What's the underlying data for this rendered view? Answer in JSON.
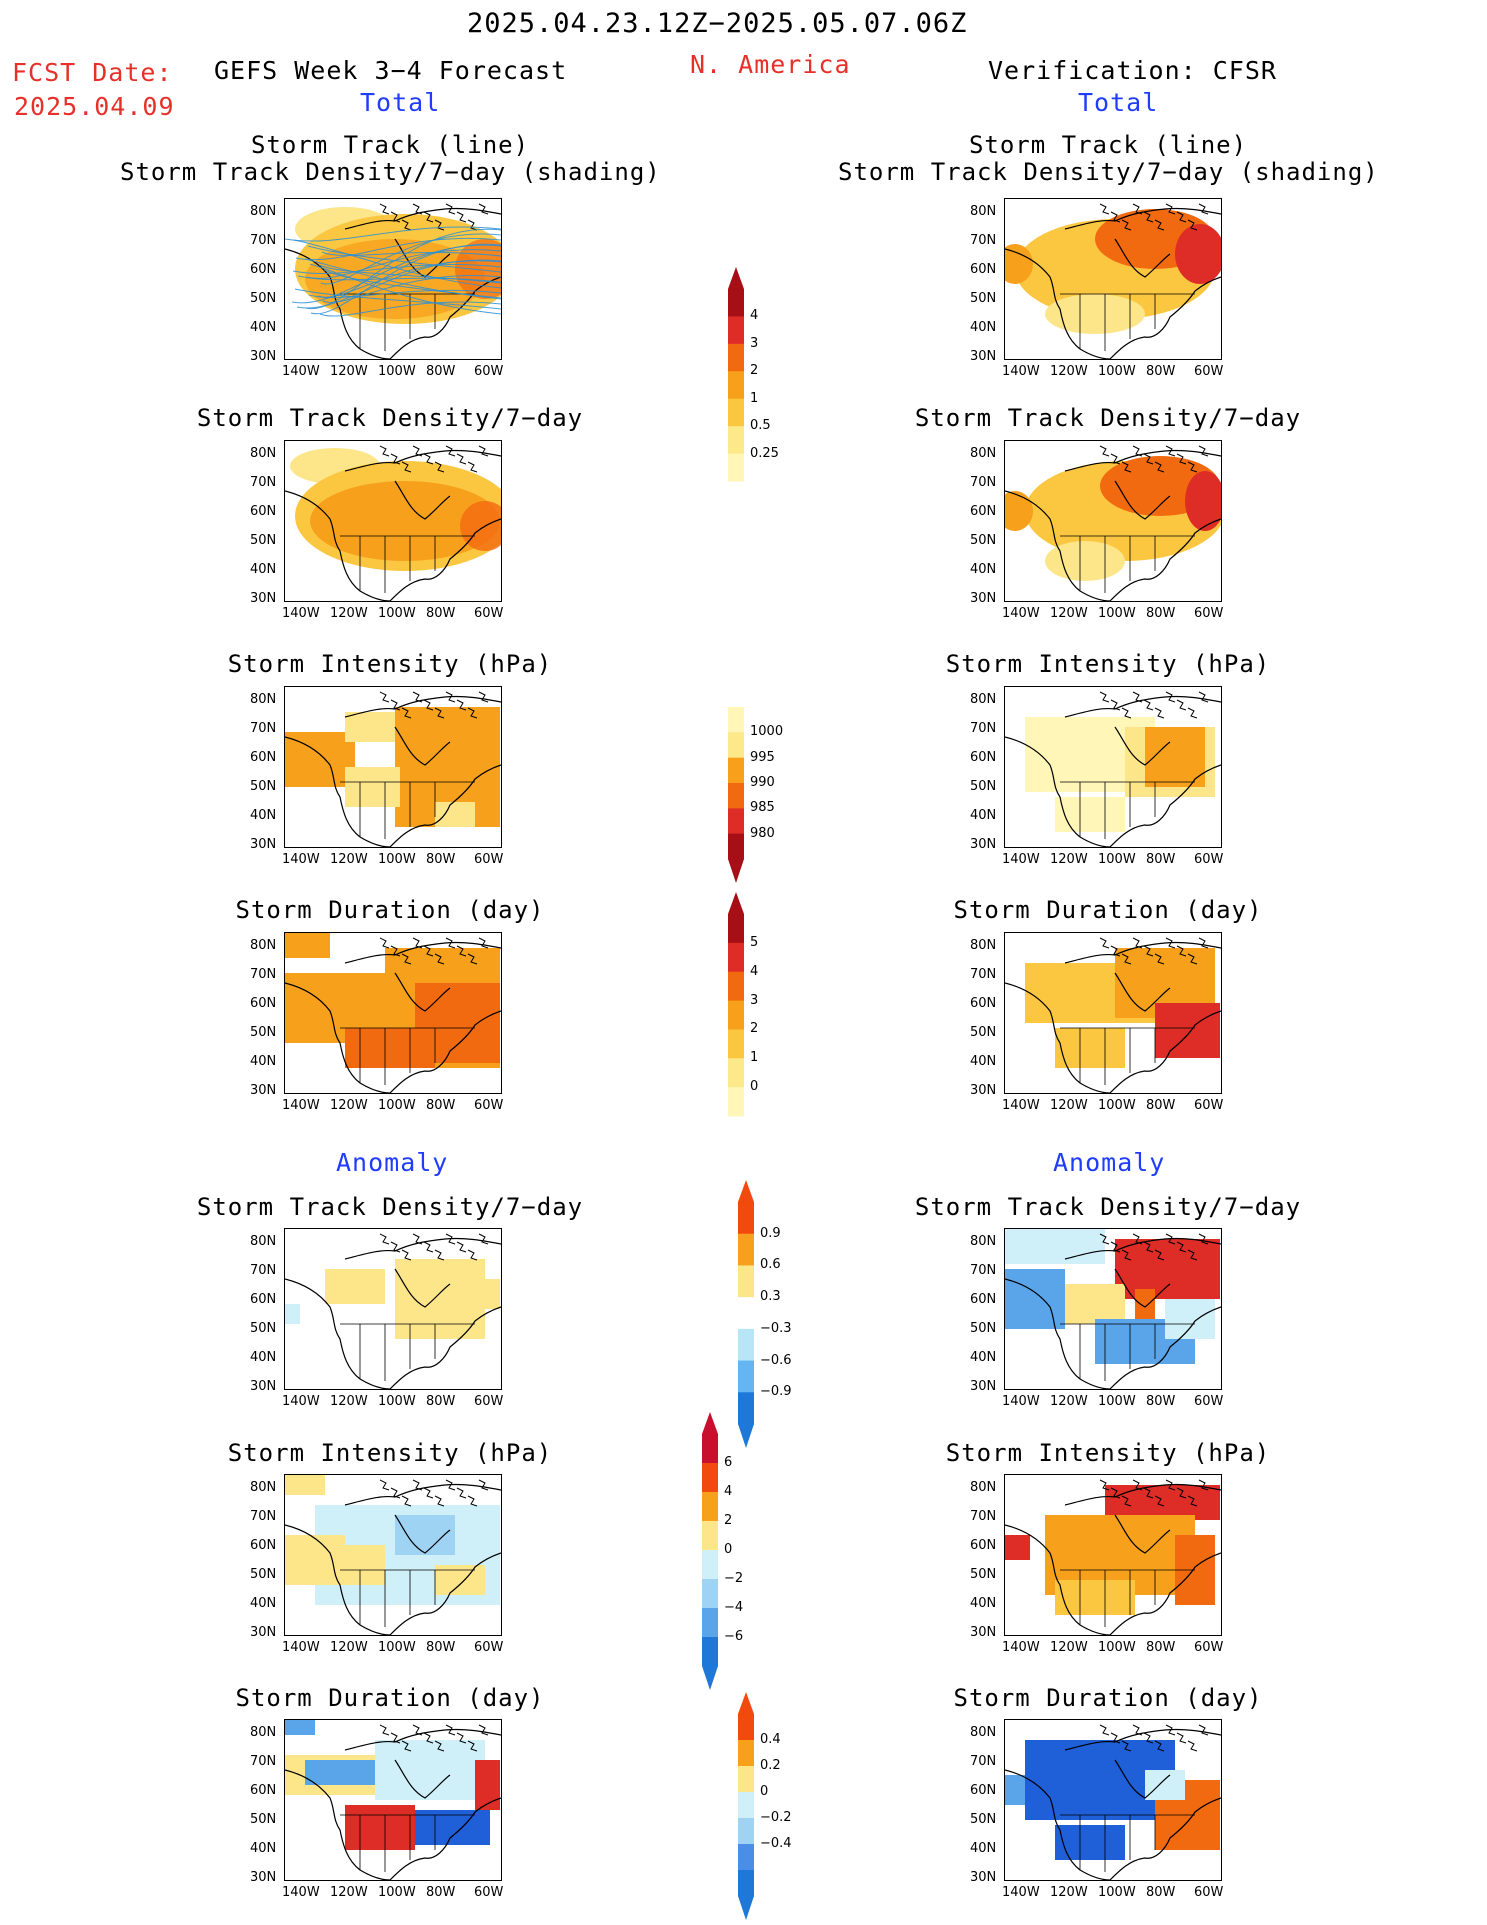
{
  "header": {
    "period": "2025.04.23.12Z−2025.05.07.06Z",
    "fcst_date_label": "FCST Date:",
    "fcst_date": "2025.04.09",
    "product": "GEFS Week 3−4 Forecast",
    "region": "N. America",
    "verification": "Verification: CFSR",
    "total_left": "Total",
    "total_right": "Total",
    "anomaly_left": "Anomaly",
    "anomaly_right": "Anomaly"
  },
  "axes": {
    "lat_ticks": [
      "80N",
      "70N",
      "60N",
      "50N",
      "40N",
      "30N"
    ],
    "lon_ticks": [
      "140W",
      "120W",
      "100W",
      "80W",
      "60W"
    ]
  },
  "panels": {
    "t1": {
      "line1": "Storm Track (line)",
      "line2": "Storm Track Density/7−day (shading)"
    },
    "t2": "Storm Track Density/7−day",
    "t3": "Storm Intensity (hPa)",
    "t4": "Storm Duration (day)",
    "a1": "Storm Track Density/7−day",
    "a2": "Storm Intensity (hPa)",
    "a3": "Storm Duration (day)"
  },
  "colorbars": {
    "density": {
      "labels": [
        "4",
        "3",
        "2",
        "1",
        "0.5",
        "0.25"
      ],
      "colors": [
        "#a50f15",
        "#de2d26",
        "#f26a0f",
        "#f7a01b",
        "#fcc740",
        "#fde88a",
        "#fff6b8"
      ]
    },
    "intensity": {
      "labels": [
        "1000",
        "995",
        "990",
        "985",
        "980"
      ],
      "colors": [
        "#fff6b8",
        "#fde88a",
        "#f7a01b",
        "#f26a0f",
        "#de2d26",
        "#a50f15"
      ]
    },
    "duration": {
      "labels": [
        "5",
        "4",
        "3",
        "2",
        "1",
        "0"
      ],
      "colors": [
        "#a50f15",
        "#de2d26",
        "#f26a0f",
        "#f7a01b",
        "#fcc740",
        "#fde88a",
        "#fff6b8"
      ]
    },
    "density_anom": {
      "labels": [
        "0.9",
        "0.6",
        "0.3",
        "−0.3",
        "−0.6",
        "−0.9"
      ],
      "colors": [
        "#f2490f",
        "#f7a01b",
        "#fde68a",
        "#ffffff",
        "#b7e6f7",
        "#64b5f0",
        "#1f78d8"
      ]
    },
    "intensity_anom": {
      "labels": [
        "6",
        "4",
        "2",
        "0",
        "−2",
        "−4",
        "−6"
      ],
      "colors": [
        "#c8102e",
        "#f2490f",
        "#f7a01b",
        "#fde68a",
        "#cfeff9",
        "#9ed3f3",
        "#5aa5ea",
        "#1f78d8"
      ]
    },
    "duration_anom": {
      "labels": [
        "0.4",
        "0.2",
        "0",
        "−0.2",
        "−0.4"
      ],
      "colors": [
        "#f2490f",
        "#f7a01b",
        "#fde68a",
        "#cfeff9",
        "#9ed3f3",
        "#4b8ee6",
        "#1f78d8"
      ]
    }
  }
}
